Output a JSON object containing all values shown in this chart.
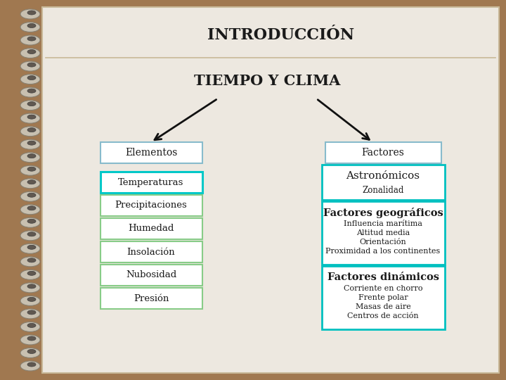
{
  "title": "INTRODUCCIÓN",
  "subtitle": "TIEMPO Y CLIMA",
  "bg_color": "#a07850",
  "page_bg": "#ede8e0",
  "left_branch_label": "Elementos",
  "left_items": [
    "Temperaturas",
    "Precipitaciones",
    "Humedad",
    "Insolación",
    "Nubosidad",
    "Presión"
  ],
  "left_item_borders": [
    "#00c8c8",
    "#88cc88",
    "#88cc88",
    "#88cc88",
    "#88cc88",
    "#88cc88"
  ],
  "right_branch_label": "Factores",
  "right_box1_title": "Astronómicos",
  "right_box1_sub": "Zonalidad",
  "right_box2_title": "Factores geográficos",
  "right_box2_items": [
    "Influencia marítima",
    "Altitud media",
    "Orientación",
    "Proximidad a los continentes"
  ],
  "right_box3_title": "Factores dinámicos",
  "right_box3_items": [
    "Corriente en chorro",
    "Frente polar",
    "Masas de aire",
    "Centros de acción"
  ],
  "box_border_cyan": "#00c0c0",
  "box_border_light": "#88cc88",
  "factores_border": "#88bbbb",
  "text_dark": "#1a1a1a",
  "line_color": "#111111",
  "title_line_color": "#c8b898"
}
